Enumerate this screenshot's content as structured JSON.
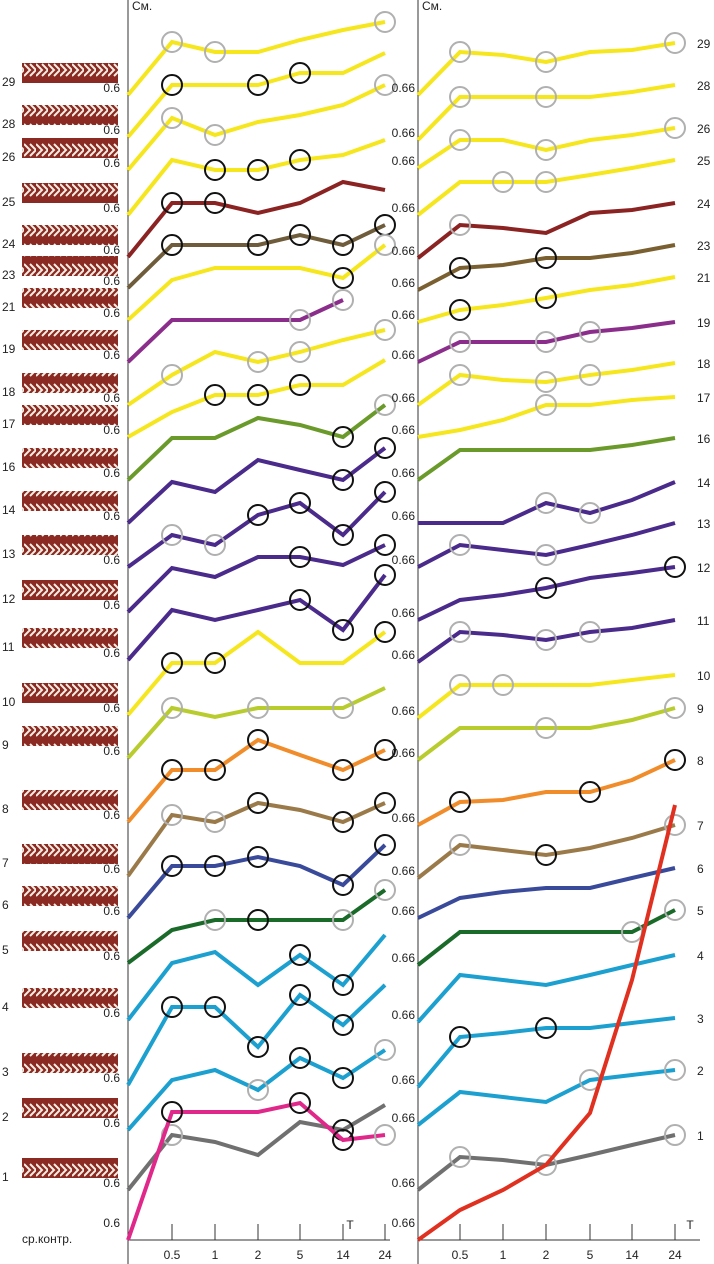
{
  "chart_data": [
    {
      "type": "line",
      "ylabel": "См.",
      "xlabel": "T",
      "categories": [
        null,
        "0.5",
        "1",
        "2",
        "5",
        "14",
        "24"
      ],
      "marker_colors": {
        "gray": "#b0b0b0",
        "black": "#111111"
      },
      "series": [
        {
          "name": "29",
          "color": "#f5e61e",
          "base": 0.6,
          "values": [
            0.6,
            0.653,
            0.643,
            0.643,
            0.655,
            0.665,
            0.673
          ],
          "gray_markers": [
            1,
            2,
            6
          ]
        },
        {
          "name": "28",
          "color": "#f5e61e",
          "base": 0.6,
          "values": [
            0.6,
            0.652,
            0.652,
            0.652,
            0.664,
            0.664,
            0.684
          ],
          "black_markers": [
            1,
            3,
            4
          ]
        },
        {
          "name": "26",
          "color": "#f5e61e",
          "base": 0.6,
          "values": [
            0.6,
            0.652,
            0.635,
            0.648,
            0.655,
            0.665,
            0.685
          ],
          "gray_markers": [
            1,
            2,
            6
          ]
        },
        {
          "name": "25",
          "color": "#f5e61e",
          "base": 0.6,
          "values": [
            0.6,
            0.655,
            0.645,
            0.645,
            0.655,
            0.66,
            0.675
          ],
          "black_markers": [
            2,
            3,
            4
          ]
        },
        {
          "name": "24",
          "color": "#8b2323",
          "base": 0.6,
          "values": [
            0.6,
            0.654,
            0.654,
            0.644,
            0.654,
            0.675,
            0.667
          ],
          "black_markers": [
            1,
            2
          ]
        },
        {
          "name": "23",
          "color": "#6e5c3b",
          "base": 0.6,
          "values": [
            0.6,
            0.643,
            0.643,
            0.643,
            0.653,
            0.643,
            0.663
          ],
          "black_markers": [
            1,
            3,
            4,
            5,
            6
          ]
        },
        {
          "name": "21",
          "color": "#f5e61e",
          "base": 0.6,
          "values": [
            0.6,
            0.64,
            0.652,
            0.652,
            0.652,
            0.642,
            0.675
          ],
          "black_markers": [
            5
          ],
          "gray_markers": [
            6
          ]
        },
        {
          "name": "19",
          "color": "#8b2e8b",
          "base": 0.6,
          "values": [
            0.6,
            0.642,
            0.642,
            0.642,
            0.642,
            0.662,
            null
          ],
          "gray_markers": [
            4,
            5
          ]
        },
        {
          "name": "18",
          "color": "#f5e61e",
          "base": 0.6,
          "values": [
            0.6,
            0.63,
            0.653,
            0.643,
            0.653,
            0.665,
            0.675
          ],
          "gray_markers": [
            1,
            3,
            4,
            6
          ]
        },
        {
          "name": "17",
          "color": "#f5e61e",
          "base": 0.6,
          "values": [
            0.6,
            0.625,
            0.642,
            0.642,
            0.652,
            0.652,
            0.677
          ],
          "black_markers": [
            2,
            3,
            4
          ]
        },
        {
          "name": "16",
          "color": "#6a9a2a",
          "base": 0.6,
          "values": [
            0.6,
            0.642,
            0.642,
            0.662,
            0.655,
            0.643,
            0.675
          ],
          "black_markers": [
            5
          ],
          "gray_markers": [
            6
          ]
        },
        {
          "name": "14",
          "color": "#4a2a8a",
          "base": 0.6,
          "values": [
            0.6,
            0.641,
            0.631,
            0.663,
            0.653,
            0.643,
            0.675
          ],
          "black_markers": [
            5,
            6
          ]
        },
        {
          "name": "13",
          "color": "#4a2a8a",
          "base": 0.6,
          "values": [
            0.6,
            0.632,
            0.622,
            0.652,
            0.664,
            0.632,
            0.675
          ],
          "gray_markers": [
            1,
            2
          ],
          "black_markers": [
            3,
            4,
            5,
            6
          ]
        },
        {
          "name": "12",
          "color": "#4a2a8a",
          "base": 0.6,
          "values": [
            0.6,
            0.644,
            0.635,
            0.655,
            0.655,
            0.647,
            0.667
          ],
          "black_markers": [
            4,
            6
          ]
        },
        {
          "name": "11",
          "color": "#4a2a8a",
          "base": 0.6,
          "values": [
            0.6,
            0.65,
            0.64,
            0.65,
            0.66,
            0.63,
            0.685
          ],
          "black_markers": [
            4,
            5,
            6
          ]
        },
        {
          "name": "10",
          "color": "#f5e61e",
          "base": 0.6,
          "values": [
            0.6,
            0.652,
            0.652,
            0.683,
            0.652,
            0.652,
            0.683
          ],
          "black_markers": [
            1,
            2,
            6
          ]
        },
        {
          "name": "9",
          "color": "#b8cc2e",
          "base": 0.6,
          "values": [
            0.6,
            0.65,
            0.641,
            0.65,
            0.65,
            0.65,
            0.67
          ],
          "gray_markers": [
            1,
            3,
            5
          ]
        },
        {
          "name": "8",
          "color": "#f08c2a",
          "base": 0.6,
          "values": [
            0.6,
            0.652,
            0.652,
            0.682,
            0.667,
            0.652,
            0.672
          ],
          "black_markers": [
            1,
            2,
            3,
            5,
            6
          ]
        },
        {
          "name": "7",
          "color": "#9b7a4a",
          "base": 0.6,
          "values": [
            0.6,
            0.661,
            0.654,
            0.673,
            0.666,
            0.654,
            0.673
          ],
          "gray_markers": [
            1,
            2
          ],
          "black_markers": [
            3,
            5,
            6
          ]
        },
        {
          "name": "6",
          "color": "#3a4a9a",
          "base": 0.6,
          "values": [
            0.6,
            0.652,
            0.652,
            0.661,
            0.652,
            0.633,
            0.673
          ],
          "black_markers": [
            1,
            2,
            3,
            5,
            6
          ]
        },
        {
          "name": "5",
          "color": "#1a6a2a",
          "base": 0.6,
          "values": [
            0.6,
            0.633,
            0.643,
            0.643,
            0.643,
            0.643,
            0.673
          ],
          "gray_markers": [
            2,
            5,
            6
          ],
          "black_markers": [
            3
          ]
        },
        {
          "name": "4",
          "color": "#1ca0d0",
          "base": 0.6,
          "values": [
            0.6,
            0.657,
            0.668,
            0.635,
            0.665,
            0.635,
            0.685
          ],
          "black_markers": [
            4,
            5
          ]
        },
        {
          "name": "3",
          "color": "#1ca0d0",
          "base": 0.6,
          "values": [
            0.6,
            0.678,
            0.678,
            0.638,
            0.69,
            0.66,
            0.7
          ],
          "black_markers": [
            1,
            2,
            3,
            4,
            5
          ]
        },
        {
          "name": "2",
          "color": "#1ca0d0",
          "base": 0.6,
          "values": [
            0.6,
            0.65,
            0.66,
            0.64,
            0.672,
            0.652,
            0.68
          ],
          "gray_markers": [
            3,
            6
          ],
          "black_markers": [
            4,
            5
          ]
        },
        {
          "name": "1",
          "color": "#707070",
          "base": 0.6,
          "values": [
            0.6,
            0.655,
            0.648,
            0.635,
            0.668,
            0.66,
            0.685
          ],
          "gray_markers": [
            1
          ],
          "black_markers": [
            5
          ]
        },
        {
          "name": "ср.контр.",
          "color": "#e0288a",
          "base": 0.6,
          "values": [
            0.6,
            0.728,
            0.728,
            0.728,
            0.737,
            0.7,
            0.705
          ],
          "black_markers": [
            1,
            4,
            5
          ],
          "gray_markers": [
            6
          ]
        }
      ]
    },
    {
      "type": "line",
      "ylabel": "См.",
      "xlabel": "T",
      "categories": [
        null,
        "0.5",
        "1",
        "2",
        "5",
        "14",
        "24"
      ],
      "marker_colors": {
        "gray": "#b0b0b0",
        "black": "#111111"
      },
      "series": [
        {
          "name": "29",
          "color": "#f5e61e",
          "base": 0.66,
          "values": [
            0.66,
            0.703,
            0.7,
            0.693,
            0.703,
            0.705,
            0.712
          ],
          "gray_markers": [
            1,
            3,
            6
          ]
        },
        {
          "name": "28",
          "color": "#f5e61e",
          "base": 0.66,
          "values": [
            0.66,
            0.703,
            0.703,
            0.703,
            0.703,
            0.708,
            0.715
          ],
          "gray_markers": [
            1,
            3
          ]
        },
        {
          "name": "26",
          "color": "#f5e61e",
          "base": 0.66,
          "values": [
            0.66,
            0.688,
            0.688,
            0.678,
            0.688,
            0.693,
            0.7
          ],
          "gray_markers": [
            1,
            3,
            6
          ]
        },
        {
          "name": "25",
          "color": "#f5e61e",
          "base": 0.66,
          "values": [
            0.66,
            0.693,
            0.693,
            0.693,
            0.7,
            0.707,
            0.715
          ],
          "gray_markers": [
            2,
            3
          ]
        },
        {
          "name": "24",
          "color": "#8b2323",
          "base": 0.66,
          "values": [
            0.66,
            0.693,
            0.69,
            0.685,
            0.705,
            0.708,
            0.715
          ],
          "gray_markers": [
            1
          ]
        },
        {
          "name": "23",
          "color": "#7a6030",
          "base": 0.66,
          "values": [
            0.66,
            0.682,
            0.685,
            0.692,
            0.692,
            0.697,
            0.705
          ],
          "black_markers": [
            1,
            3
          ]
        },
        {
          "name": "21",
          "color": "#f5e61e",
          "base": 0.66,
          "values": [
            0.66,
            0.672,
            0.677,
            0.684,
            0.692,
            0.697,
            0.705
          ],
          "black_markers": [
            1,
            3
          ]
        },
        {
          "name": "19",
          "color": "#8b2e8b",
          "base": 0.66,
          "values": [
            0.66,
            0.68,
            0.68,
            0.68,
            0.69,
            0.694,
            0.7
          ],
          "gray_markers": [
            1,
            3,
            4
          ]
        },
        {
          "name": "18",
          "color": "#f5e61e",
          "base": 0.66,
          "values": [
            0.66,
            0.69,
            0.685,
            0.683,
            0.69,
            0.695,
            0.702
          ],
          "gray_markers": [
            1,
            3,
            4
          ]
        },
        {
          "name": "17",
          "color": "#f5e61e",
          "base": 0.66,
          "values": [
            0.66,
            0.667,
            0.677,
            0.692,
            0.692,
            0.697,
            0.7
          ],
          "gray_markers": [
            3
          ]
        },
        {
          "name": "16",
          "color": "#6a9a2a",
          "base": 0.66,
          "values": [
            0.66,
            0.69,
            0.69,
            0.69,
            0.69,
            0.695,
            0.702
          ]
        },
        {
          "name": "14",
          "color": "#4a2a8a",
          "base": 0.66,
          "values": [
            0.66,
            0.66,
            0.66,
            0.68,
            0.67,
            0.683,
            0.701
          ],
          "gray_markers": [
            3,
            4
          ]
        },
        {
          "name": "13",
          "color": "#4a2a8a",
          "base": 0.66,
          "values": [
            0.66,
            0.682,
            0.677,
            0.672,
            0.682,
            0.692,
            0.704
          ],
          "gray_markers": [
            1,
            3
          ]
        },
        {
          "name": "12",
          "color": "#4a2a8a",
          "base": 0.66,
          "values": [
            0.66,
            0.68,
            0.685,
            0.692,
            0.702,
            0.707,
            0.713
          ],
          "black_markers": [
            3,
            6
          ]
        },
        {
          "name": "11",
          "color": "#4a2a8a",
          "base": 0.66,
          "values": [
            0.66,
            0.69,
            0.687,
            0.682,
            0.69,
            0.694,
            0.702
          ],
          "gray_markers": [
            1,
            3,
            4
          ]
        },
        {
          "name": "10",
          "color": "#f5e61e",
          "base": 0.66,
          "values": [
            0.66,
            0.693,
            0.693,
            0.693,
            0.693,
            0.698,
            0.703
          ],
          "gray_markers": [
            1,
            2
          ]
        },
        {
          "name": "9",
          "color": "#b8cc2e",
          "base": 0.66,
          "values": [
            0.66,
            0.692,
            0.692,
            0.692,
            0.692,
            0.7,
            0.712
          ],
          "gray_markers": [
            3,
            6
          ]
        },
        {
          "name": "8",
          "color": "#f08c2a",
          "base": 0.66,
          "values": [
            0.66,
            0.683,
            0.685,
            0.693,
            0.693,
            0.705,
            0.725
          ],
          "black_markers": [
            1,
            4,
            6
          ]
        },
        {
          "name": "7",
          "color": "#9b7a4a",
          "base": 0.66,
          "values": [
            0.66,
            0.693,
            0.688,
            0.683,
            0.69,
            0.7,
            0.713
          ],
          "gray_markers": [
            1,
            6
          ],
          "black_markers": [
            3
          ]
        },
        {
          "name": "6",
          "color": "#3a4a9a",
          "base": 0.66,
          "values": [
            0.66,
            0.68,
            0.686,
            0.69,
            0.69,
            0.7,
            0.71
          ]
        },
        {
          "name": "5",
          "color": "#1a6a2a",
          "base": 0.66,
          "values": [
            0.66,
            0.693,
            0.693,
            0.693,
            0.693,
            0.693,
            0.715
          ],
          "gray_markers": [
            5,
            6
          ]
        },
        {
          "name": "4",
          "color": "#1ca0d0",
          "base": 0.66,
          "values": [
            0.66,
            0.707,
            0.702,
            0.697,
            0.707,
            0.717,
            0.727
          ]
        },
        {
          "name": "3",
          "color": "#1ca0d0",
          "base": 0.66,
          "values": [
            0.66,
            0.71,
            0.714,
            0.719,
            0.719,
            0.724,
            0.729
          ],
          "black_markers": [
            1,
            3
          ]
        },
        {
          "name": "2",
          "color": "#1ca0d0",
          "base": 0.66,
          "values": [
            0.66,
            0.693,
            0.688,
            0.683,
            0.705,
            0.71,
            0.715
          ],
          "gray_markers": [
            4,
            6
          ]
        },
        {
          "name": "1",
          "color": "#707070",
          "base": 0.66,
          "values": [
            0.66,
            0.693,
            0.69,
            0.685,
            0.695,
            0.705,
            0.715
          ],
          "gray_markers": [
            1,
            3,
            6
          ]
        },
        {
          "color": "#e03020",
          "base": 0.66,
          "values": [
            0.66,
            0.69,
            0.71,
            0.735,
            0.787,
            0.92,
            1.095
          ]
        }
      ]
    }
  ]
}
